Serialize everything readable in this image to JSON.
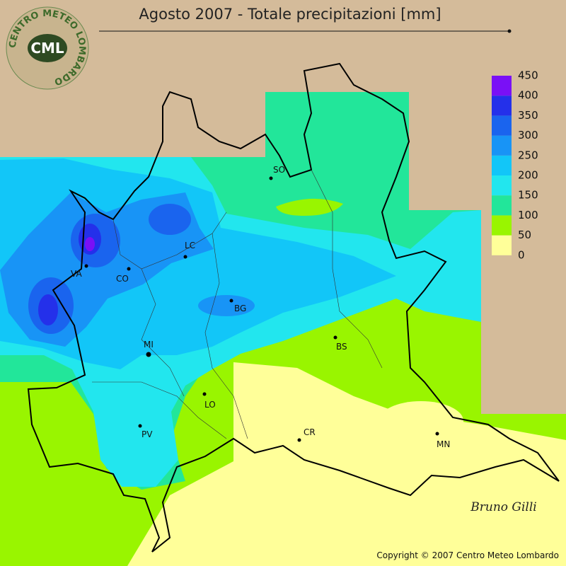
{
  "header": {
    "title": "Agosto 2007 - Totale precipitazioni [mm]"
  },
  "logo": {
    "text": "CML",
    "ring": "CENTRO METEO LOMBARDO"
  },
  "legend": {
    "levels": [
      0,
      50,
      100,
      150,
      200,
      250,
      300,
      350,
      400,
      450
    ],
    "colors": [
      "#ffff99",
      "#99f500",
      "#22e69a",
      "#22e6ee",
      "#12c6f8",
      "#1894f6",
      "#1a64ee",
      "#2430ea",
      "#7a10f6"
    ]
  },
  "cities": [
    {
      "label": "SO"
    },
    {
      "label": "LC"
    },
    {
      "label": "CO"
    },
    {
      "label": "VA"
    },
    {
      "label": "BG"
    },
    {
      "label": "BS"
    },
    {
      "label": "MI"
    },
    {
      "label": "LO"
    },
    {
      "label": "PV"
    },
    {
      "label": "CR"
    },
    {
      "label": "MN"
    }
  ],
  "signature": "Bruno Gilli",
  "footer": {
    "copyright": "Copyright © 2007 Centro Meteo Lombardo"
  }
}
